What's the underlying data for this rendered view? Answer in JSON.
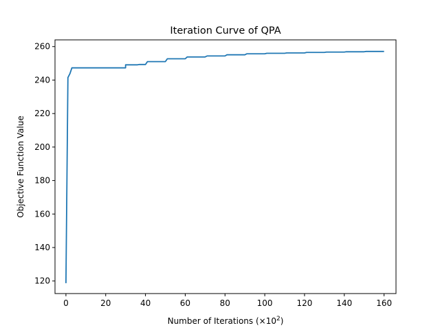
{
  "chart_data": {
    "type": "line",
    "title": "Iteration Curve of QPA",
    "xlabel": {
      "base": "Number of Iterations (×10",
      "sup": "2",
      "end": ")"
    },
    "ylabel": "Objective Function Value",
    "xlim": [
      -5.5,
      166
    ],
    "ylim": [
      112.5,
      264
    ],
    "xticks": [
      0,
      20,
      40,
      60,
      80,
      100,
      120,
      140,
      160
    ],
    "yticks": [
      120,
      140,
      160,
      180,
      200,
      220,
      240,
      260
    ],
    "grid": false,
    "color": "#1f77b4",
    "series": [
      {
        "x": [
          0,
          1,
          2,
          3,
          29,
          30,
          30,
          36,
          37,
          40,
          41,
          50,
          51,
          60,
          61,
          70,
          71,
          80,
          81,
          90,
          91,
          100,
          101,
          110,
          111,
          120,
          121,
          130,
          131,
          140,
          141,
          150,
          151,
          160
        ],
        "values": [
          118.7,
          241.5,
          243.8,
          247.3,
          247.3,
          247.3,
          249.1,
          249.1,
          249.3,
          249.3,
          251.0,
          251.0,
          252.7,
          252.7,
          253.8,
          253.8,
          254.4,
          254.4,
          255.1,
          255.1,
          255.7,
          255.7,
          256.0,
          256.0,
          256.2,
          256.2,
          256.5,
          256.5,
          256.7,
          256.7,
          256.9,
          256.9,
          257.1,
          257.1
        ]
      }
    ]
  }
}
